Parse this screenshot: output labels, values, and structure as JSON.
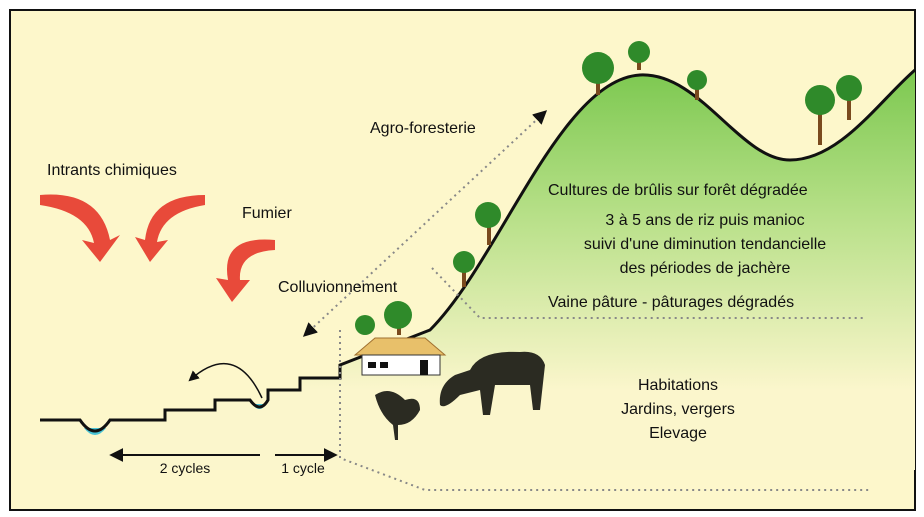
{
  "labels": {
    "intrants": "Intrants chimiques",
    "fumier": "Fumier",
    "colluvionnement": "Colluvionnement",
    "agroforesterie": "Agro-foresterie",
    "cultures": "Cultures de brûlis sur forêt dégradée",
    "riz": "3 à 5 ans de riz puis manioc",
    "suivi": "suivi d'une diminution tendancielle",
    "jachere": "des périodes de jachère",
    "vaine": "Vaine pâture - pâturages dégradés",
    "habitations": "Habitations",
    "jardins": "Jardins, vergers",
    "elevage": "Elevage",
    "cycles2": "2 cycles",
    "cycle1": "1 cycle"
  }
}
